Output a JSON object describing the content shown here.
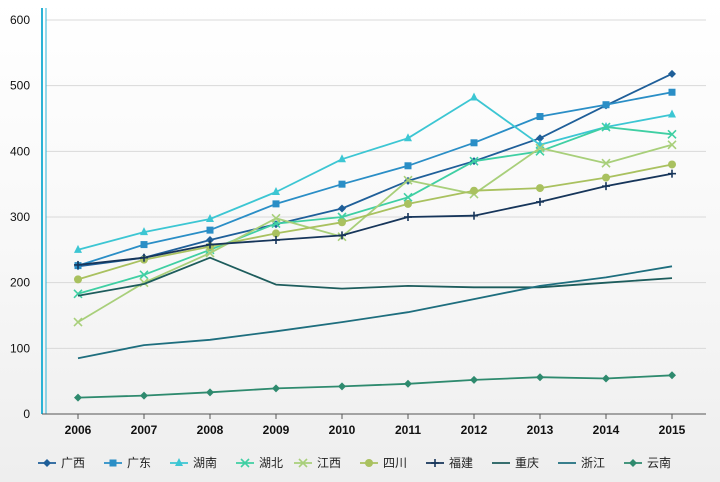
{
  "chart_data": {
    "type": "line",
    "title": "",
    "xlabel": "",
    "ylabel": "",
    "x": [
      "2006",
      "2007",
      "2008",
      "2009",
      "2010",
      "2011",
      "2012",
      "2013",
      "2014",
      "2015"
    ],
    "ylim": [
      0,
      600
    ],
    "yticks": [
      0,
      100,
      200,
      300,
      400,
      500,
      600
    ],
    "grid": true,
    "legend_position": "bottom",
    "series": [
      {
        "name": "广西",
        "color": "#1f5f99",
        "marker": "diamond",
        "values": [
          225,
          238,
          265,
          289,
          313,
          355,
          385,
          420,
          470,
          518
        ]
      },
      {
        "name": "广东",
        "color": "#2a8ec6",
        "marker": "square",
        "values": [
          226,
          258,
          280,
          320,
          350,
          378,
          413,
          453,
          471,
          490
        ]
      },
      {
        "name": "湖南",
        "color": "#3cc6d3",
        "marker": "triangle",
        "values": [
          250,
          277,
          297,
          338,
          388,
          420,
          482,
          410,
          437,
          456
        ]
      },
      {
        "name": "湖北",
        "color": "#3fcfa3",
        "marker": "x",
        "values": [
          183,
          212,
          250,
          290,
          300,
          330,
          385,
          400,
          437,
          426
        ]
      },
      {
        "name": "江西",
        "color": "#a8cf7a",
        "marker": "x",
        "values": [
          140,
          200,
          245,
          298,
          270,
          356,
          335,
          405,
          382,
          410
        ]
      },
      {
        "name": "四川",
        "color": "#a9c15f",
        "marker": "circle",
        "values": [
          205,
          235,
          255,
          275,
          292,
          320,
          340,
          344,
          360,
          380
        ]
      },
      {
        "name": "福建",
        "color": "#16355a",
        "marker": "plus",
        "values": [
          227,
          238,
          258,
          265,
          272,
          300,
          302,
          323,
          347,
          366
        ]
      },
      {
        "name": "重庆",
        "color": "#1d5c5c",
        "marker": "none",
        "values": [
          180,
          198,
          238,
          197,
          191,
          195,
          193,
          193,
          200,
          207
        ]
      },
      {
        "name": "浙江",
        "color": "#1e6e7e",
        "marker": "none",
        "values": [
          85,
          105,
          113,
          126,
          140,
          155,
          175,
          195,
          208,
          225
        ]
      },
      {
        "name": "云南",
        "color": "#2e8a6e",
        "marker": "diamond",
        "values": [
          25,
          28,
          33,
          39,
          42,
          46,
          52,
          56,
          54,
          59
        ]
      }
    ]
  }
}
